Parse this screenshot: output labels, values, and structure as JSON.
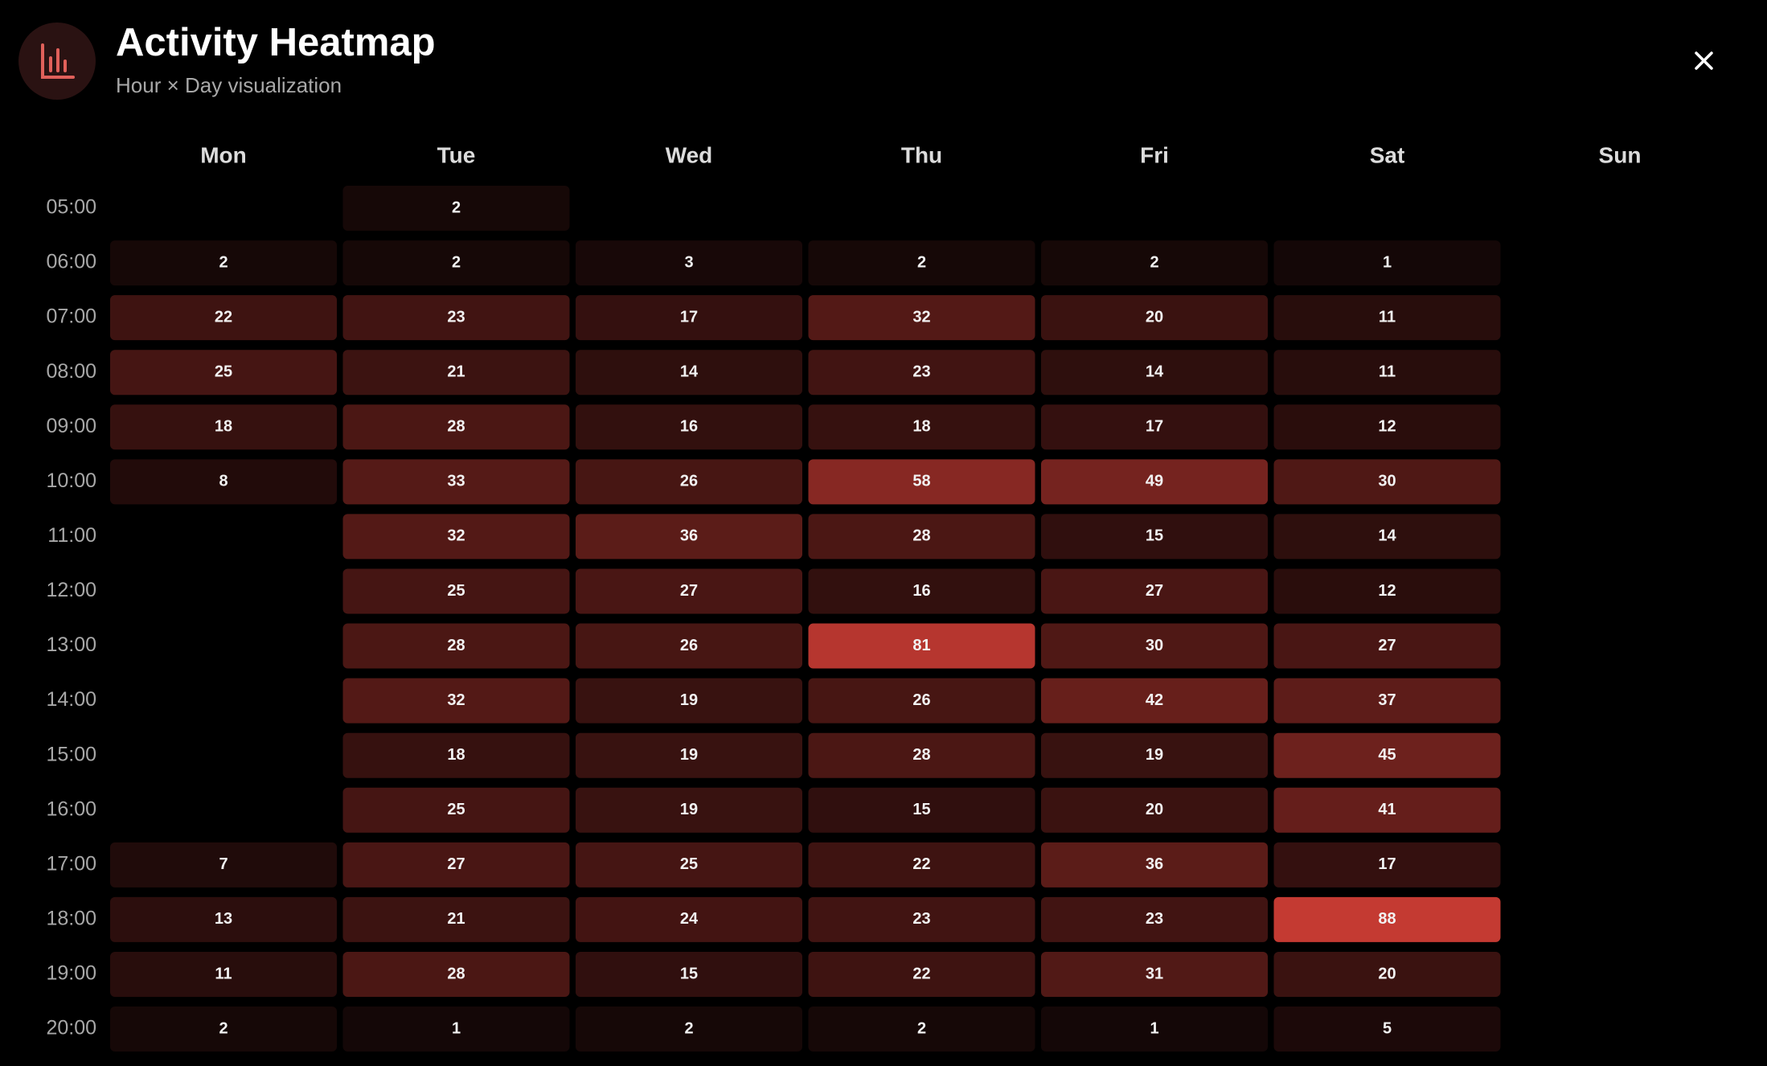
{
  "header": {
    "title": "Activity Heatmap",
    "subtitle": "Hour × Day visualization"
  },
  "chart_data": {
    "type": "heatmap",
    "columns": [
      "Mon",
      "Tue",
      "Wed",
      "Thu",
      "Fri",
      "Sat",
      "Sun"
    ],
    "rows": [
      "05:00",
      "06:00",
      "07:00",
      "08:00",
      "09:00",
      "10:00",
      "11:00",
      "12:00",
      "13:00",
      "14:00",
      "15:00",
      "16:00",
      "17:00",
      "18:00",
      "19:00",
      "20:00"
    ],
    "colors": [
      "#140707",
      "#c43a32"
    ],
    "values": [
      [
        null,
        2,
        null,
        null,
        null,
        null,
        null
      ],
      [
        2,
        2,
        3,
        2,
        2,
        1,
        null
      ],
      [
        22,
        23,
        17,
        32,
        20,
        11,
        null
      ],
      [
        25,
        21,
        14,
        23,
        14,
        11,
        null
      ],
      [
        18,
        28,
        16,
        18,
        17,
        12,
        null
      ],
      [
        8,
        33,
        26,
        58,
        49,
        30,
        null
      ],
      [
        null,
        32,
        36,
        28,
        15,
        14,
        null
      ],
      [
        null,
        25,
        27,
        16,
        27,
        12,
        null
      ],
      [
        null,
        28,
        26,
        81,
        30,
        27,
        null
      ],
      [
        null,
        32,
        19,
        26,
        42,
        37,
        null
      ],
      [
        null,
        18,
        19,
        28,
        19,
        45,
        null
      ],
      [
        null,
        25,
        19,
        15,
        20,
        41,
        null
      ],
      [
        7,
        27,
        25,
        22,
        36,
        17,
        null
      ],
      [
        13,
        21,
        24,
        23,
        23,
        88,
        null
      ],
      [
        11,
        28,
        15,
        22,
        31,
        20,
        null
      ],
      [
        2,
        1,
        2,
        2,
        1,
        5,
        null
      ]
    ]
  }
}
